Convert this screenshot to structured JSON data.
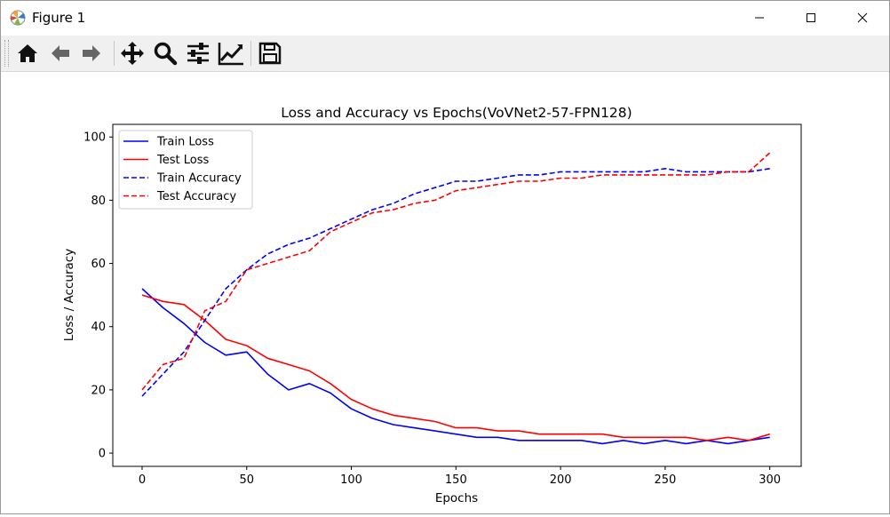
{
  "window": {
    "title": "Figure 1"
  },
  "toolbar": {
    "buttons": [
      {
        "name": "home-icon"
      },
      {
        "name": "back-arrow-icon"
      },
      {
        "name": "forward-arrow-icon"
      },
      {
        "name": "pan-icon"
      },
      {
        "name": "zoom-icon"
      },
      {
        "name": "configure-subplots-icon"
      },
      {
        "name": "edit-axis-icon"
      },
      {
        "name": "save-icon"
      }
    ]
  },
  "chart_data": {
    "type": "line",
    "title": "Loss and Accuracy vs Epochs(VoVNet2-57-FPN128)",
    "xlabel": "Epochs",
    "ylabel": "Loss / Accuracy",
    "xlim": [
      -14,
      315
    ],
    "ylim": [
      -4.2,
      104
    ],
    "xticks": [
      0,
      50,
      100,
      150,
      200,
      250,
      300
    ],
    "yticks": [
      0,
      20,
      40,
      60,
      80,
      100
    ],
    "legend_position": "upper-left",
    "grid": false,
    "series": [
      {
        "name": "Train Loss",
        "color": "#0000ff",
        "style": "solid",
        "x": [
          0,
          10,
          20,
          30,
          40,
          50,
          60,
          70,
          80,
          90,
          100,
          110,
          120,
          130,
          140,
          150,
          160,
          170,
          180,
          190,
          200,
          210,
          220,
          230,
          240,
          250,
          260,
          270,
          280,
          290,
          300
        ],
        "values": [
          52,
          46,
          41,
          35,
          31,
          32,
          25,
          20,
          22,
          19,
          14,
          11,
          9,
          8,
          7,
          6,
          5,
          5,
          4,
          4,
          4,
          4,
          3,
          4,
          3,
          4,
          3,
          4,
          3,
          4,
          5
        ]
      },
      {
        "name": "Test Loss",
        "color": "#ff0000",
        "style": "solid",
        "x": [
          0,
          10,
          20,
          30,
          40,
          50,
          60,
          70,
          80,
          90,
          100,
          110,
          120,
          130,
          140,
          150,
          160,
          170,
          180,
          190,
          200,
          210,
          220,
          230,
          240,
          250,
          260,
          270,
          280,
          290,
          300
        ],
        "values": [
          50,
          48,
          47,
          42,
          36,
          34,
          30,
          28,
          26,
          22,
          17,
          14,
          12,
          11,
          10,
          8,
          8,
          7,
          7,
          6,
          6,
          6,
          6,
          5,
          5,
          5,
          5,
          4,
          5,
          4,
          6
        ]
      },
      {
        "name": "Train Accuracy",
        "color": "#0000ff",
        "style": "dashed",
        "x": [
          0,
          10,
          20,
          30,
          40,
          50,
          60,
          70,
          80,
          90,
          100,
          110,
          120,
          130,
          140,
          150,
          160,
          170,
          180,
          190,
          200,
          210,
          220,
          230,
          240,
          250,
          260,
          270,
          280,
          290,
          300
        ],
        "values": [
          18,
          25,
          32,
          42,
          52,
          58,
          63,
          66,
          68,
          71,
          74,
          77,
          79,
          82,
          84,
          86,
          86,
          87,
          88,
          88,
          89,
          89,
          89,
          89,
          89,
          90,
          89,
          89,
          89,
          89,
          90
        ]
      },
      {
        "name": "Test Accuracy",
        "color": "#ff0000",
        "style": "dashed",
        "x": [
          0,
          10,
          20,
          30,
          40,
          50,
          60,
          70,
          80,
          90,
          100,
          110,
          120,
          130,
          140,
          150,
          160,
          170,
          180,
          190,
          200,
          210,
          220,
          230,
          240,
          250,
          260,
          270,
          280,
          290,
          300
        ],
        "values": [
          20,
          28,
          30,
          45,
          48,
          58,
          60,
          62,
          64,
          70,
          73,
          76,
          77,
          79,
          80,
          83,
          84,
          85,
          86,
          86,
          87,
          87,
          88,
          88,
          88,
          88,
          88,
          88,
          89,
          89,
          95
        ]
      }
    ]
  }
}
